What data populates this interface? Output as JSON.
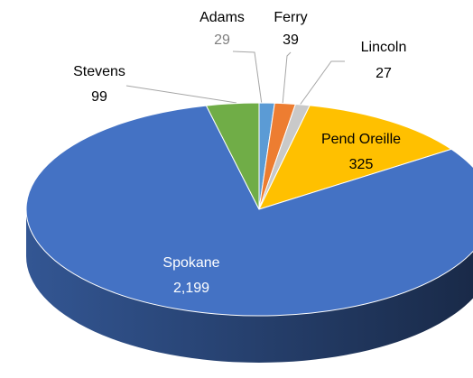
{
  "chart_data": {
    "type": "pie3d",
    "categories": [
      "Adams",
      "Ferry",
      "Lincoln",
      "Pend Oreille",
      "Spokane",
      "Stevens"
    ],
    "values": [
      29,
      39,
      27,
      325,
      2199,
      99
    ],
    "value_labels": [
      "29",
      "39",
      "27",
      "325",
      "2,199",
      "99"
    ],
    "colors": [
      "#5b9bd5",
      "#ed7d31",
      "#c9c9c9",
      "#ffc000",
      "#4472c4",
      "#70ad47"
    ]
  }
}
